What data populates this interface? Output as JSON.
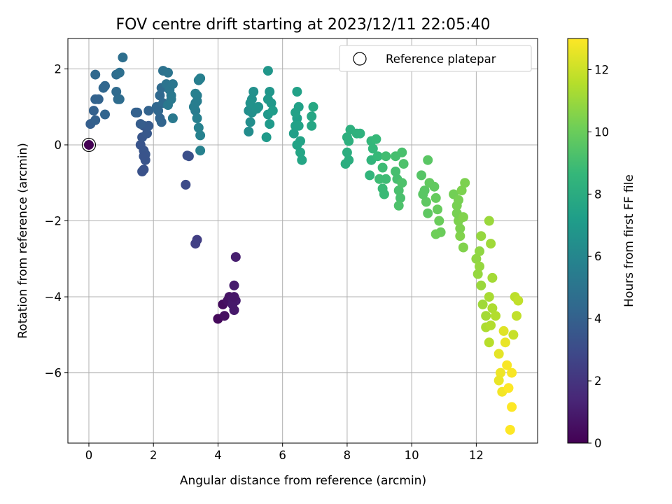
{
  "chart_data": {
    "type": "scatter",
    "title": "FOV centre drift starting at 2023/12/11 22:05:40",
    "xlabel": "Angular distance from reference (arcmin)",
    "ylabel": "Rotation from reference (arcmin)",
    "xlim": [
      -0.65,
      13.9
    ],
    "ylim": [
      -7.85,
      2.8
    ],
    "xticks": [
      0,
      2,
      4,
      6,
      8,
      10,
      12
    ],
    "xtick_labels": [
      "0",
      "2",
      "4",
      "6",
      "8",
      "10",
      "12"
    ],
    "yticks": [
      2,
      0,
      -2,
      -4,
      -6
    ],
    "ytick_labels": [
      "2",
      "0",
      "−2",
      "−4",
      "−6"
    ],
    "grid": true,
    "legend": {
      "placement": "top-right",
      "entries": [
        "Reference platepar"
      ]
    },
    "reference_point": {
      "x": 0,
      "y": 0,
      "label": "Reference platepar"
    },
    "colorbar": {
      "label": "Hours from first FF file",
      "range": [
        0,
        13
      ],
      "ticks": [
        0,
        2,
        4,
        6,
        8,
        10,
        12
      ],
      "tick_labels": [
        "0",
        "2",
        "4",
        "6",
        "8",
        "10",
        "12"
      ],
      "colormap": [
        "#440154",
        "#482878",
        "#3e4989",
        "#31688e",
        "#26828e",
        "#1f9e89",
        "#35b779",
        "#6ece58",
        "#b5de2b",
        "#fde725"
      ]
    },
    "series": [
      {
        "points": [
          [
            4.0,
            -4.58,
            0.3
          ],
          [
            4.15,
            -4.2,
            0.4
          ],
          [
            4.2,
            -4.5,
            0.5
          ],
          [
            4.3,
            -4.1,
            0.6
          ],
          [
            4.35,
            -4.0,
            0.7
          ],
          [
            4.45,
            -4.05,
            0.8
          ],
          [
            4.5,
            -4.35,
            0.9
          ],
          [
            4.55,
            -4.1,
            1.0
          ],
          [
            4.5,
            -3.7,
            1.0
          ],
          [
            4.55,
            -2.95,
            1.1
          ],
          [
            4.45,
            -4.2,
            0.9
          ],
          [
            4.5,
            -4.0,
            0.8
          ],
          [
            3.35,
            -2.5,
            2.4
          ],
          [
            3.3,
            -2.6,
            2.5
          ],
          [
            3.0,
            -1.05,
            3.0
          ],
          [
            3.05,
            -0.28,
            3.1
          ],
          [
            3.1,
            -0.3,
            3.2
          ],
          [
            1.65,
            -0.7,
            3.3
          ],
          [
            1.7,
            -0.65,
            3.3
          ],
          [
            1.6,
            0.0,
            3.4
          ],
          [
            1.7,
            -0.15,
            3.4
          ],
          [
            1.75,
            -0.25,
            3.5
          ],
          [
            1.65,
            0.2,
            3.5
          ],
          [
            1.8,
            0.3,
            3.6
          ],
          [
            1.7,
            0.5,
            3.6
          ],
          [
            1.85,
            0.5,
            3.7
          ],
          [
            1.6,
            0.55,
            3.8
          ],
          [
            1.75,
            -0.4,
            3.4
          ],
          [
            1.7,
            -0.3,
            3.4
          ],
          [
            1.45,
            0.85,
            4.0
          ],
          [
            1.5,
            0.85,
            4.0
          ],
          [
            1.85,
            0.9,
            4.1
          ],
          [
            2.2,
            0.7,
            4.2
          ],
          [
            2.25,
            0.6,
            4.2
          ],
          [
            2.1,
            1.0,
            4.3
          ],
          [
            2.2,
            1.3,
            4.4
          ],
          [
            2.25,
            1.5,
            4.5
          ],
          [
            2.3,
            1.1,
            4.5
          ],
          [
            2.15,
            0.9,
            4.3
          ],
          [
            0.05,
            0.55,
            3.9
          ],
          [
            0.2,
            0.65,
            4.0
          ],
          [
            0.15,
            0.9,
            4.0
          ],
          [
            0.2,
            1.2,
            4.1
          ],
          [
            0.3,
            1.2,
            4.1
          ],
          [
            0.5,
            0.8,
            4.2
          ],
          [
            0.45,
            1.5,
            4.3
          ],
          [
            0.5,
            1.55,
            4.3
          ],
          [
            0.2,
            1.85,
            4.4
          ],
          [
            0.85,
            1.4,
            4.5
          ],
          [
            0.9,
            1.2,
            4.5
          ],
          [
            0.95,
            1.2,
            4.6
          ],
          [
            0.85,
            1.85,
            4.6
          ],
          [
            0.95,
            1.9,
            4.7
          ],
          [
            1.05,
            2.3,
            4.7
          ],
          [
            2.3,
            1.95,
            4.9
          ],
          [
            2.45,
            1.9,
            5.0
          ],
          [
            2.4,
            1.6,
            5.0
          ],
          [
            2.5,
            1.45,
            5.1
          ],
          [
            2.6,
            1.6,
            5.1
          ],
          [
            2.55,
            1.3,
            5.2
          ],
          [
            2.45,
            1.05,
            5.2
          ],
          [
            2.6,
            0.7,
            5.3
          ],
          [
            2.55,
            1.2,
            5.3
          ],
          [
            3.3,
            1.1,
            5.4
          ],
          [
            3.3,
            0.9,
            5.4
          ],
          [
            3.35,
            1.3,
            5.5
          ],
          [
            3.4,
            1.7,
            5.5
          ],
          [
            3.45,
            1.75,
            5.6
          ],
          [
            3.35,
            0.7,
            5.6
          ],
          [
            3.4,
            0.45,
            5.7
          ],
          [
            3.45,
            0.25,
            5.7
          ],
          [
            3.45,
            -0.15,
            5.7
          ],
          [
            3.25,
            1.0,
            5.5
          ],
          [
            3.35,
            1.15,
            5.5
          ],
          [
            3.3,
            1.35,
            5.6
          ],
          [
            4.95,
            0.35,
            6.3
          ],
          [
            5.0,
            0.6,
            6.4
          ],
          [
            4.95,
            0.9,
            6.4
          ],
          [
            5.05,
            1.2,
            6.5
          ],
          [
            5.1,
            1.4,
            6.5
          ],
          [
            5.05,
            0.85,
            6.5
          ],
          [
            5.0,
            1.1,
            6.6
          ],
          [
            5.2,
            0.95,
            6.6
          ],
          [
            5.25,
            1.0,
            6.6
          ],
          [
            5.55,
            1.95,
            6.8
          ],
          [
            5.6,
            1.4,
            6.8
          ],
          [
            5.55,
            1.2,
            6.9
          ],
          [
            5.65,
            1.1,
            6.9
          ],
          [
            5.55,
            0.8,
            6.9
          ],
          [
            5.5,
            0.2,
            7.0
          ],
          [
            5.6,
            0.55,
            7.0
          ],
          [
            5.7,
            0.9,
            7.1
          ],
          [
            6.35,
            0.3,
            7.3
          ],
          [
            6.45,
            0.7,
            7.3
          ],
          [
            6.5,
            1.0,
            7.4
          ],
          [
            6.45,
            1.4,
            7.4
          ],
          [
            6.5,
            0.5,
            7.5
          ],
          [
            6.55,
            0.1,
            7.5
          ],
          [
            6.55,
            -0.2,
            7.6
          ],
          [
            6.6,
            -0.4,
            7.6
          ],
          [
            6.4,
            0.85,
            7.4
          ],
          [
            6.4,
            0.5,
            7.4
          ],
          [
            6.45,
            0.0,
            7.5
          ],
          [
            6.9,
            0.5,
            7.7
          ],
          [
            6.9,
            0.75,
            7.7
          ],
          [
            6.95,
            1.0,
            7.8
          ],
          [
            7.95,
            -0.5,
            8.1
          ],
          [
            8.0,
            -0.2,
            8.1
          ],
          [
            8.05,
            0.1,
            8.2
          ],
          [
            8.0,
            0.2,
            8.2
          ],
          [
            8.1,
            0.4,
            8.2
          ],
          [
            8.3,
            0.3,
            8.3
          ],
          [
            8.4,
            0.3,
            8.3
          ],
          [
            8.05,
            -0.4,
            8.1
          ],
          [
            8.7,
            -0.8,
            8.5
          ],
          [
            8.75,
            -0.4,
            8.5
          ],
          [
            8.8,
            -0.1,
            8.6
          ],
          [
            8.75,
            0.1,
            8.6
          ],
          [
            8.9,
            0.15,
            8.7
          ],
          [
            8.95,
            -0.3,
            8.7
          ],
          [
            9.1,
            -1.15,
            8.8
          ],
          [
            9.15,
            -1.3,
            8.8
          ],
          [
            9.2,
            -0.9,
            8.9
          ],
          [
            9.1,
            -0.6,
            8.9
          ],
          [
            9.2,
            -0.3,
            9.0
          ],
          [
            9.0,
            -0.9,
            8.9
          ],
          [
            9.5,
            -0.7,
            9.1
          ],
          [
            9.55,
            -0.9,
            9.1
          ],
          [
            9.6,
            -1.2,
            9.2
          ],
          [
            9.65,
            -1.4,
            9.2
          ],
          [
            9.6,
            -1.6,
            9.3
          ],
          [
            9.7,
            -1.0,
            9.3
          ],
          [
            9.75,
            -0.5,
            9.3
          ],
          [
            9.7,
            -0.2,
            9.2
          ],
          [
            9.5,
            -0.3,
            9.1
          ],
          [
            10.3,
            -0.8,
            9.5
          ],
          [
            10.4,
            -1.2,
            9.6
          ],
          [
            10.45,
            -1.5,
            9.7
          ],
          [
            10.5,
            -0.4,
            9.6
          ],
          [
            10.5,
            -1.8,
            9.7
          ],
          [
            10.55,
            -1.0,
            9.8
          ],
          [
            10.35,
            -1.3,
            9.6
          ],
          [
            10.75,
            -1.4,
            9.9
          ],
          [
            10.8,
            -1.7,
            9.9
          ],
          [
            10.85,
            -2.0,
            10.0
          ],
          [
            10.9,
            -2.3,
            10.0
          ],
          [
            10.7,
            -1.1,
            9.8
          ],
          [
            10.75,
            -2.35,
            10.1
          ],
          [
            11.3,
            -1.3,
            10.2
          ],
          [
            11.4,
            -1.6,
            10.3
          ],
          [
            11.45,
            -2.0,
            10.4
          ],
          [
            11.5,
            -2.4,
            10.5
          ],
          [
            11.55,
            -1.2,
            10.4
          ],
          [
            11.6,
            -2.7,
            10.5
          ],
          [
            11.65,
            -1.0,
            10.4
          ],
          [
            11.4,
            -1.8,
            10.3
          ],
          [
            11.5,
            -2.2,
            10.4
          ],
          [
            11.6,
            -1.9,
            10.5
          ],
          [
            11.45,
            -1.45,
            10.3
          ],
          [
            12.0,
            -3.0,
            10.8
          ],
          [
            12.05,
            -3.4,
            10.9
          ],
          [
            12.1,
            -2.8,
            10.8
          ],
          [
            12.15,
            -3.7,
            11.0
          ],
          [
            12.2,
            -4.2,
            11.1
          ],
          [
            12.15,
            -2.4,
            10.9
          ],
          [
            12.3,
            -4.5,
            11.2
          ],
          [
            12.4,
            -2.0,
            11.0
          ],
          [
            12.45,
            -2.6,
            11.1
          ],
          [
            12.5,
            -3.5,
            11.2
          ],
          [
            12.4,
            -4.0,
            11.3
          ],
          [
            12.1,
            -3.2,
            10.9
          ],
          [
            12.3,
            -4.8,
            11.4
          ],
          [
            12.4,
            -5.2,
            11.6
          ],
          [
            12.5,
            -4.3,
            11.4
          ],
          [
            12.6,
            -4.5,
            11.5
          ],
          [
            12.45,
            -4.75,
            11.5
          ],
          [
            12.7,
            -5.5,
            12.5
          ],
          [
            12.75,
            -6.0,
            12.7
          ],
          [
            12.8,
            -6.5,
            12.8
          ],
          [
            12.9,
            -5.2,
            12.6
          ],
          [
            12.85,
            -4.9,
            12.4
          ],
          [
            12.7,
            -6.2,
            12.6
          ],
          [
            12.95,
            -5.8,
            12.9
          ],
          [
            13.0,
            -6.4,
            13.0
          ],
          [
            13.05,
            -7.5,
            13.0
          ],
          [
            13.1,
            -6.0,
            12.9
          ],
          [
            13.15,
            -5.0,
            11.9
          ],
          [
            13.2,
            -4.0,
            11.7
          ],
          [
            13.25,
            -4.5,
            11.8
          ],
          [
            13.3,
            -4.1,
            11.8
          ],
          [
            13.1,
            -6.9,
            13.0
          ]
        ]
      }
    ]
  }
}
